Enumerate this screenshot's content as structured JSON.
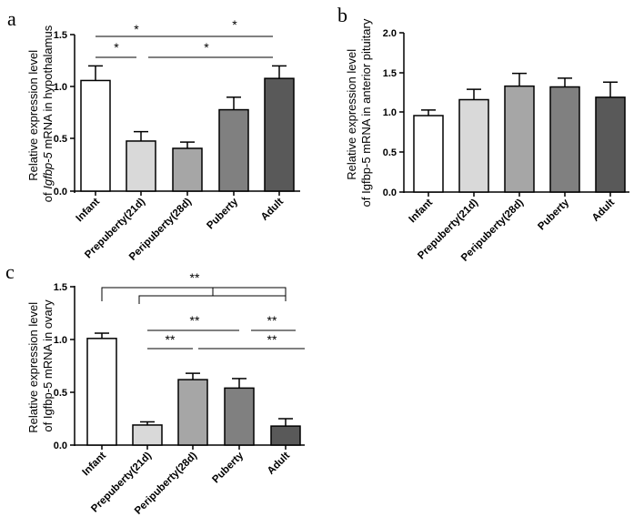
{
  "chart_data": [
    {
      "panel": "a",
      "type": "bar",
      "categories": [
        "Infant",
        "Prepuberty(21d)",
        "Peripuberty(28d)",
        "Puberty",
        "Adult"
      ],
      "values": [
        1.06,
        0.48,
        0.41,
        0.78,
        1.08
      ],
      "errors": [
        0.14,
        0.09,
        0.06,
        0.12,
        0.12
      ],
      "colors": [
        "#ffffff",
        "#d9d9d9",
        "#a6a6a6",
        "#808080",
        "#595959"
      ],
      "ylabel_line1": "Relative expression level",
      "ylabel_line2_pre": "of ",
      "ylabel_line2_gene": "Igfbp-5",
      "ylabel_line2_post": " mRNA in hypothalamus",
      "ylim": [
        0,
        1.5
      ],
      "yticks": [
        "0.0",
        "0.5",
        "1.0",
        "1.5"
      ],
      "significance": [
        {
          "from": 0,
          "to": 2,
          "label": "*"
        },
        {
          "from": 2,
          "to": 4,
          "label": "*"
        },
        {
          "from": 0,
          "to": 1,
          "label": "*"
        },
        {
          "from": 1,
          "to": 4,
          "label": "*"
        }
      ]
    },
    {
      "panel": "b",
      "type": "bar",
      "categories": [
        "Infant",
        "Prepuberty(21d)",
        "Peripuberty(28d)",
        "Puberty",
        "Adult"
      ],
      "values": [
        0.96,
        1.16,
        1.33,
        1.32,
        1.19
      ],
      "errors": [
        0.07,
        0.13,
        0.16,
        0.11,
        0.19
      ],
      "colors": [
        "#ffffff",
        "#d9d9d9",
        "#a6a6a6",
        "#808080",
        "#595959"
      ],
      "ylabel_line1": "Relative expression level",
      "ylabel_line2": "of Igfbp-5 mRNA in anterior pituitary",
      "ylim": [
        0,
        2.0
      ],
      "yticks": [
        "0.0",
        "0.5",
        "1.0",
        "1.5",
        "2.0"
      ],
      "significance": []
    },
    {
      "panel": "c",
      "type": "bar",
      "categories": [
        "Infant",
        "Prepuberty(21d)",
        "Peripuberty(28d)",
        "Puberty",
        "Adult"
      ],
      "values": [
        1.01,
        0.19,
        0.62,
        0.54,
        0.18
      ],
      "errors": [
        0.05,
        0.03,
        0.06,
        0.09,
        0.07
      ],
      "colors": [
        "#ffffff",
        "#d9d9d9",
        "#a6a6a6",
        "#808080",
        "#595959"
      ],
      "ylabel_line1": "Relative expression level",
      "ylabel_line2": "of Igfbp-5 mRNA in ovary",
      "ylim": [
        0,
        1.5
      ],
      "yticks": [
        "0.0",
        "0.5",
        "1.0",
        "1.5"
      ],
      "significance": [
        {
          "bracket": true,
          "from": 0,
          "to": 4,
          "label": "**"
        },
        {
          "from": 2,
          "to": 3,
          "label": "**"
        },
        {
          "from": 3,
          "to": 4,
          "label": "**"
        },
        {
          "from": 1,
          "to": 2,
          "label": "**"
        },
        {
          "from": 2,
          "to": 4,
          "label": "**"
        }
      ]
    }
  ]
}
